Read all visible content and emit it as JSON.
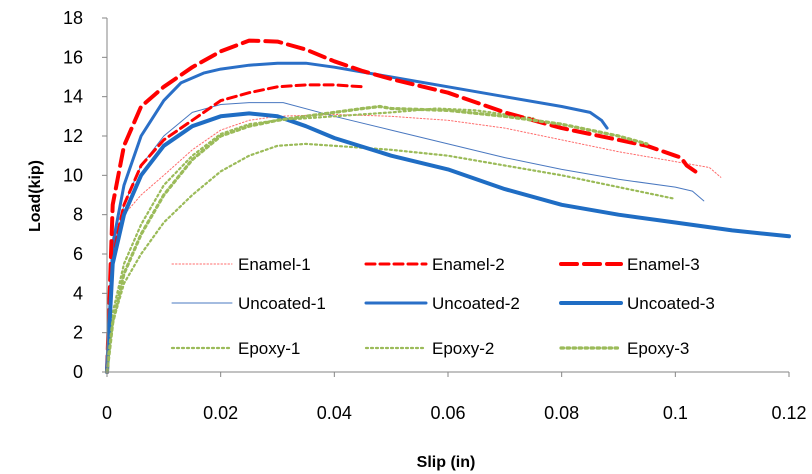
{
  "chart_data": {
    "type": "line",
    "title": "",
    "xlabel": "Slip (in)",
    "ylabel": "Load(kip)",
    "xlim": [
      0,
      0.12
    ],
    "ylim": [
      0,
      18
    ],
    "x_ticks": [
      "0",
      "0.02",
      "0.04",
      "0.06",
      "0.08",
      "0.1",
      "0.12"
    ],
    "y_ticks": [
      "0",
      "2",
      "4",
      "6",
      "8",
      "10",
      "12",
      "14",
      "16",
      "18"
    ],
    "grid": false,
    "legend_position": "center (inside plot, 3 columns)",
    "series": [
      {
        "name": "Enamel-1",
        "color": "#ff6b6b",
        "style": "fine-dotted",
        "x": [
          0,
          0.001,
          0.003,
          0.006,
          0.01,
          0.015,
          0.02,
          0.025,
          0.03,
          0.04,
          0.05,
          0.06,
          0.07,
          0.08,
          0.09,
          0.1,
          0.106,
          0.108
        ],
        "y": [
          0,
          6.5,
          8.0,
          9.0,
          10.0,
          11.3,
          12.3,
          12.8,
          13.0,
          13.1,
          13.0,
          12.8,
          12.4,
          11.8,
          11.2,
          10.7,
          10.4,
          9.9
        ]
      },
      {
        "name": "Uncoated-1",
        "color": "#4a78c0",
        "style": "thin-solid",
        "x": [
          0,
          0.001,
          0.003,
          0.006,
          0.01,
          0.015,
          0.02,
          0.025,
          0.031,
          0.04,
          0.05,
          0.06,
          0.07,
          0.08,
          0.09,
          0.1,
          0.103,
          0.105
        ],
        "y": [
          0,
          6.0,
          8.5,
          10.5,
          12.0,
          13.2,
          13.6,
          13.7,
          13.7,
          13.0,
          12.3,
          11.6,
          10.9,
          10.3,
          9.8,
          9.4,
          9.2,
          8.7
        ]
      },
      {
        "name": "Epoxy-1",
        "color": "#9bbb59",
        "style": "dotted",
        "x": [
          0,
          0.001,
          0.003,
          0.006,
          0.01,
          0.015,
          0.02,
          0.025,
          0.03,
          0.035,
          0.04,
          0.05,
          0.06,
          0.07,
          0.08,
          0.09,
          0.1
        ],
        "y": [
          0,
          2.5,
          4.5,
          6.0,
          7.6,
          9.0,
          10.2,
          11.0,
          11.5,
          11.6,
          11.5,
          11.3,
          11.0,
          10.5,
          10.0,
          9.4,
          8.8
        ]
      },
      {
        "name": "Enamel-2",
        "color": "#ff0000",
        "style": "dashed",
        "x": [
          0,
          0.001,
          0.003,
          0.006,
          0.01,
          0.015,
          0.02,
          0.025,
          0.03,
          0.035,
          0.04,
          0.045
        ],
        "y": [
          0,
          6.0,
          8.5,
          10.5,
          11.8,
          12.8,
          13.8,
          14.2,
          14.5,
          14.6,
          14.6,
          14.5
        ]
      },
      {
        "name": "Uncoated-2",
        "color": "#2a6fc7",
        "style": "solid",
        "x": [
          0,
          0.001,
          0.003,
          0.006,
          0.01,
          0.013,
          0.017,
          0.02,
          0.025,
          0.03,
          0.035,
          0.04,
          0.05,
          0.06,
          0.07,
          0.08,
          0.085,
          0.087,
          0.088
        ],
        "y": [
          0,
          6.5,
          9.5,
          12.0,
          13.8,
          14.7,
          15.2,
          15.4,
          15.6,
          15.7,
          15.7,
          15.5,
          15.0,
          14.5,
          14.0,
          13.5,
          13.2,
          12.8,
          12.4
        ]
      },
      {
        "name": "Epoxy-2",
        "color": "#9bbb59",
        "style": "dotted",
        "x": [
          0,
          0.001,
          0.003,
          0.006,
          0.01,
          0.015,
          0.02,
          0.025,
          0.03,
          0.04,
          0.05,
          0.058,
          0.065,
          0.07,
          0.075
        ],
        "y": [
          0,
          3.0,
          5.5,
          7.5,
          9.5,
          11.0,
          12.1,
          12.6,
          12.8,
          13.0,
          13.2,
          13.4,
          13.3,
          13.1,
          12.9
        ]
      },
      {
        "name": "Enamel-3",
        "color": "#ff0000",
        "style": "long-dashed",
        "x": [
          0,
          0.001,
          0.003,
          0.006,
          0.01,
          0.015,
          0.02,
          0.025,
          0.03,
          0.035,
          0.04,
          0.045,
          0.05,
          0.06,
          0.07,
          0.08,
          0.09,
          0.095,
          0.1,
          0.101,
          0.102,
          0.104
        ],
        "y": [
          0,
          8.5,
          11.5,
          13.5,
          14.5,
          15.5,
          16.3,
          16.85,
          16.8,
          16.4,
          15.8,
          15.3,
          14.9,
          14.2,
          13.2,
          12.4,
          11.8,
          11.5,
          11.0,
          10.9,
          10.5,
          10.1
        ]
      },
      {
        "name": "Uncoated-3",
        "color": "#1f6dc4",
        "style": "thick-solid",
        "x": [
          0,
          0.001,
          0.003,
          0.006,
          0.01,
          0.015,
          0.02,
          0.025,
          0.03,
          0.035,
          0.04,
          0.05,
          0.06,
          0.07,
          0.08,
          0.09,
          0.1,
          0.11,
          0.12
        ],
        "y": [
          0,
          5.5,
          8.0,
          10.0,
          11.5,
          12.5,
          13.0,
          13.15,
          13.0,
          12.5,
          11.9,
          11.0,
          10.3,
          9.3,
          8.5,
          8.0,
          7.6,
          7.2,
          6.9
        ]
      },
      {
        "name": "Epoxy-3",
        "color": "#9bbb59",
        "style": "thick-dotted",
        "x": [
          0,
          0.001,
          0.003,
          0.006,
          0.01,
          0.015,
          0.02,
          0.025,
          0.03,
          0.035,
          0.04,
          0.045,
          0.048,
          0.05,
          0.06,
          0.07,
          0.08,
          0.09,
          0.095
        ],
        "y": [
          0,
          2.5,
          5.0,
          7.0,
          9.0,
          10.8,
          12.0,
          12.5,
          12.8,
          13.0,
          13.2,
          13.4,
          13.5,
          13.4,
          13.3,
          13.0,
          12.6,
          12.0,
          11.6
        ]
      }
    ]
  }
}
